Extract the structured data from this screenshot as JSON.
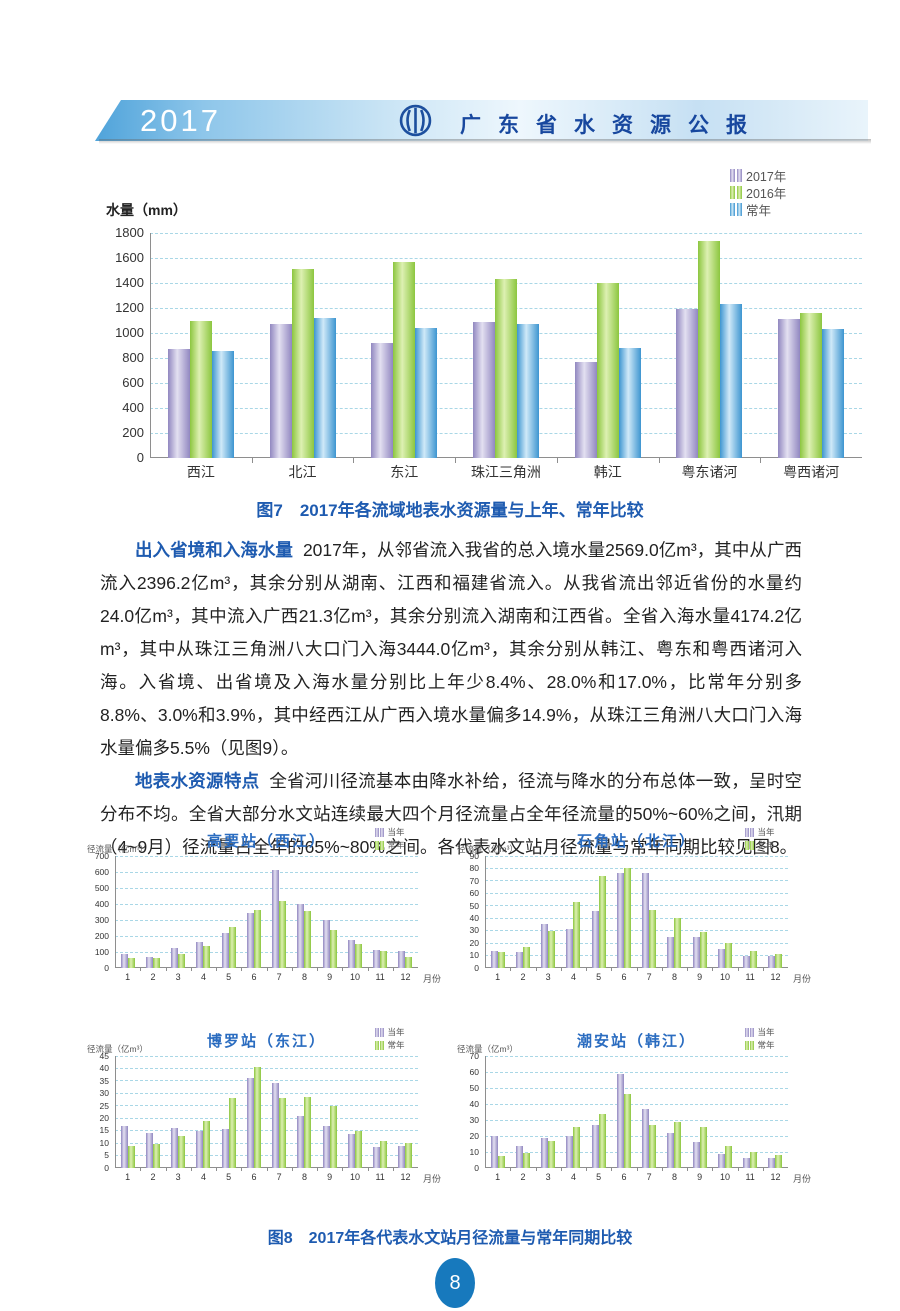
{
  "header": {
    "year": "2017",
    "title": "广东省水资源公报"
  },
  "figure7": {
    "caption": "图7　2017年各流域地表水资源量与上年、常年比较"
  },
  "paragraphs": [
    {
      "lead": "出入省境和入海水量",
      "text": "2017年，从邻省流入我省的总入境水量2569.0亿m³，其中从广西流入2396.2亿m³，其余分别从湖南、江西和福建省流入。从我省流出邻近省份的水量约24.0亿m³，其中流入广西21.3亿m³，其余分别流入湖南和江西省。全省入海水量4174.2亿m³，其中从珠江三角洲八大口门入海3444.0亿m³，其余分别从韩江、粤东和粤西诸河入海。入省境、出省境及入海水量分别比上年少8.4%、28.0%和17.0%，比常年分别多8.8%、3.0%和3.9%，其中经西江从广西入境水量偏多14.9%，从珠江三角洲八大口门入海水量偏多5.5%（见图9）。"
    },
    {
      "lead": "地表水资源特点",
      "text": "全省河川径流基本由降水补给，径流与降水的分布总体一致，呈时空分布不均。全省大部分水文站连续最大四个月径流量占全年径流量的50%~60%之间，汛期（4~9月）径流量占全年的65%~80%之间。各代表水文站月径流量与常年同期比较见图8。"
    }
  ],
  "figure8": {
    "caption": "图8　2017年各代表水文站月径流量与常年同期比较"
  },
  "page_number": "8",
  "chart_data": [
    {
      "type": "bar",
      "title": "图7 2017年各流域地表水资源量与上年、常年比较",
      "show_title": false,
      "ylabel": "水量（mm）",
      "xlabel": "",
      "categories": [
        "西江",
        "北江",
        "东江",
        "珠江三角洲",
        "韩江",
        "粤东诸河",
        "粤西诸河"
      ],
      "series": [
        {
          "name": "2017年",
          "color": "#9187c0",
          "light": "#e3e0f1",
          "values": [
            870,
            1070,
            920,
            1090,
            770,
            1195,
            1110
          ]
        },
        {
          "name": "2016年",
          "color": "#8cc63f",
          "light": "#ddf0b2",
          "values": [
            1100,
            1510,
            1570,
            1430,
            1400,
            1740,
            1160
          ]
        },
        {
          "name": "常年",
          "color": "#3d95d0",
          "light": "#cfe9f8",
          "values": [
            855,
            1120,
            1040,
            1070,
            880,
            1230,
            1030
          ]
        }
      ],
      "ylim": [
        0,
        1800
      ],
      "ystep": 200,
      "grid": true,
      "legend_position": "top-right"
    },
    {
      "type": "bar",
      "title": "高要站（西江）",
      "show_title": true,
      "ylabel": "径流量（亿m³）",
      "xlabel": "月份",
      "categories": [
        "1",
        "2",
        "3",
        "4",
        "5",
        "6",
        "7",
        "8",
        "9",
        "10",
        "11",
        "12"
      ],
      "series": [
        {
          "name": "当年",
          "color": "#9187c0",
          "light": "#e3e0f1",
          "values": [
            85,
            70,
            125,
            165,
            220,
            345,
            615,
            400,
            300,
            175,
            115,
            105
          ]
        },
        {
          "name": "常年",
          "color": "#8cc63f",
          "light": "#ddf0b2",
          "values": [
            60,
            60,
            85,
            140,
            255,
            365,
            420,
            355,
            240,
            150,
            105,
            70
          ]
        }
      ],
      "ylim": [
        0,
        700
      ],
      "ystep": 100,
      "grid": true,
      "legend_position": "top-right"
    },
    {
      "type": "bar",
      "title": "石角站（北江）",
      "show_title": true,
      "ylabel": "径流量（亿m³）",
      "xlabel": "月份",
      "categories": [
        "1",
        "2",
        "3",
        "4",
        "5",
        "6",
        "7",
        "8",
        "9",
        "10",
        "11",
        "12"
      ],
      "series": [
        {
          "name": "当年",
          "color": "#9187c0",
          "light": "#e3e0f1",
          "values": [
            14,
            13,
            35,
            31,
            46,
            76,
            76,
            25,
            25,
            15,
            10,
            10
          ]
        },
        {
          "name": "常年",
          "color": "#8cc63f",
          "light": "#ddf0b2",
          "values": [
            13,
            17,
            30,
            53,
            74,
            80,
            47,
            40,
            29,
            20,
            14,
            11
          ]
        }
      ],
      "ylim": [
        0,
        90
      ],
      "ystep": 10,
      "grid": true,
      "legend_position": "top-right"
    },
    {
      "type": "bar",
      "title": "博罗站（东江）",
      "show_title": true,
      "ylabel": "径流量（亿m³）",
      "xlabel": "月份",
      "categories": [
        "1",
        "2",
        "3",
        "4",
        "5",
        "6",
        "7",
        "8",
        "9",
        "10",
        "11",
        "12"
      ],
      "series": [
        {
          "name": "当年",
          "color": "#9187c0",
          "light": "#e3e0f1",
          "values": [
            17,
            14,
            16,
            15,
            15.5,
            36,
            34,
            21,
            17,
            13.5,
            8.5,
            9
          ]
        },
        {
          "name": "常年",
          "color": "#8cc63f",
          "light": "#ddf0b2",
          "values": [
            9,
            9.5,
            13,
            19,
            28,
            40.5,
            28,
            28.5,
            25,
            15,
            11,
            10
          ]
        }
      ],
      "ylim": [
        0,
        45
      ],
      "ystep": 5,
      "grid": true,
      "legend_position": "top-right"
    },
    {
      "type": "bar",
      "title": "潮安站（韩江）",
      "show_title": true,
      "ylabel": "径流量（亿m³）",
      "xlabel": "月份",
      "categories": [
        "1",
        "2",
        "3",
        "4",
        "5",
        "6",
        "7",
        "8",
        "9",
        "10",
        "11",
        "12"
      ],
      "series": [
        {
          "name": "当年",
          "color": "#9187c0",
          "light": "#e3e0f1",
          "values": [
            20,
            14,
            19,
            20,
            27,
            59,
            37,
            22,
            16,
            9,
            6,
            6
          ]
        },
        {
          "name": "常年",
          "color": "#8cc63f",
          "light": "#ddf0b2",
          "values": [
            7.5,
            9.5,
            17,
            25.5,
            33.5,
            46,
            27,
            29,
            25.5,
            14,
            10,
            8
          ]
        }
      ],
      "ylim": [
        0,
        70
      ],
      "ystep": 10,
      "grid": true,
      "legend_position": "top-right"
    }
  ]
}
